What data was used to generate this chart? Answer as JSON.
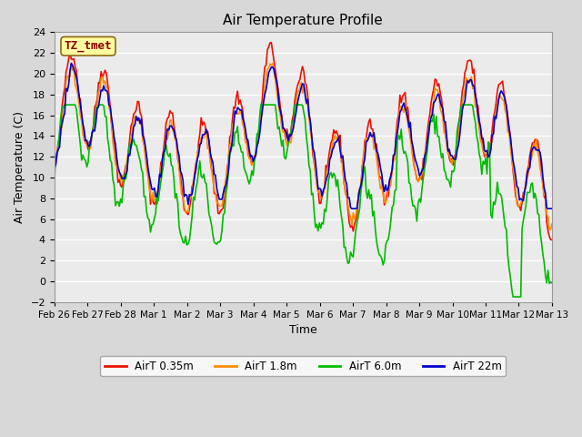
{
  "title": "Air Temperature Profile",
  "xlabel": "Time",
  "ylabel": "Air Temperature (C)",
  "annotation": "TZ_tmet",
  "annotation_color": "#8B0000",
  "annotation_bg": "#FFFFA0",
  "annotation_edge": "#8B6914",
  "ylim": [
    -2,
    24
  ],
  "yticks": [
    -2,
    0,
    2,
    4,
    6,
    8,
    10,
    12,
    14,
    16,
    18,
    20,
    22,
    24
  ],
  "series_colors": [
    "#EE1100",
    "#FF8C00",
    "#00BB00",
    "#0000CC"
  ],
  "series_labels": [
    "AirT 0.35m",
    "AirT 1.8m",
    "AirT 6.0m",
    "AirT 22m"
  ],
  "line_width": 1.2,
  "fig_bg_color": "#D8D8D8",
  "plot_bg_color": "#EBEBEB",
  "x_tick_labels": [
    "Feb 26",
    "Feb 27",
    "Feb 28",
    "Mar 1",
    "Mar 2",
    "Mar 3",
    "Mar 4",
    "Mar 5",
    "Mar 6",
    "Mar 7",
    "Mar 8",
    "Mar 9",
    "Mar 10",
    "Mar 11",
    "Mar 12",
    "Mar 13"
  ],
  "n_days": 16,
  "pts_per_day": 24
}
